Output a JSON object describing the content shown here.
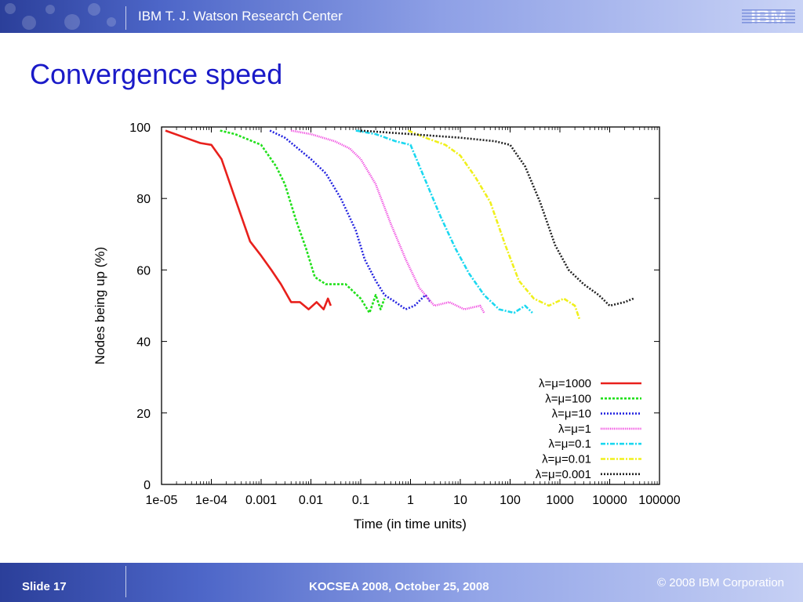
{
  "header": {
    "org": "IBM T. J. Watson Research Center",
    "logo_text": "IBM"
  },
  "slide": {
    "title": "Convergence speed"
  },
  "footer": {
    "slide_label": "Slide 17",
    "conference": "KOCSEA 2008, October 25, 2008",
    "copyright": "© 2008 IBM Corporation"
  },
  "colors": {
    "title": "#1a1ac8",
    "banner": "#4d66c8"
  },
  "chart_data": {
    "type": "line",
    "xlabel": "Time (in time units)",
    "ylabel": "Nodes being up (%)",
    "x_scale": "log",
    "xlim": [
      1e-05,
      100000
    ],
    "ylim": [
      0,
      100
    ],
    "x_ticks": [
      "1e-05",
      "1e-04",
      "0.001",
      "0.01",
      "0.1",
      "1",
      "10",
      "100",
      "1000",
      "10000",
      "100000"
    ],
    "y_ticks": [
      "0",
      "20",
      "40",
      "60",
      "80",
      "100"
    ],
    "grid": false,
    "legend_position": "bottom-right",
    "series": [
      {
        "name": "λ=μ=1000",
        "color": "#e8201c",
        "dash": "solid",
        "x": [
          1.2e-05,
          3e-05,
          6e-05,
          0.0001,
          0.00016,
          0.0003,
          0.0006,
          0.001,
          0.0016,
          0.0025,
          0.004,
          0.006,
          0.009,
          0.013,
          0.018,
          0.022,
          0.025
        ],
        "y": [
          99,
          97,
          95.5,
          95,
          91,
          80,
          68,
          64,
          60,
          56,
          51,
          51,
          49,
          51,
          49,
          52,
          50
        ]
      },
      {
        "name": "λ=μ=100",
        "color": "#22e01c",
        "dash": "3,2",
        "x": [
          0.00015,
          0.0003,
          0.001,
          0.002,
          0.003,
          0.005,
          0.008,
          0.012,
          0.02,
          0.05,
          0.1,
          0.15,
          0.2,
          0.25,
          0.3
        ],
        "y": [
          99,
          98,
          95,
          89,
          84,
          74,
          66,
          58,
          56,
          56,
          52,
          48,
          53,
          49,
          52
        ]
      },
      {
        "name": "λ=μ=10",
        "color": "#2424e0",
        "dash": "2,2",
        "x": [
          0.0015,
          0.003,
          0.01,
          0.02,
          0.04,
          0.08,
          0.12,
          0.2,
          0.3,
          0.5,
          0.8,
          1.2,
          2,
          2.5
        ],
        "y": [
          99,
          97,
          91,
          87,
          80,
          71,
          63,
          57,
          53,
          51,
          49,
          50,
          53,
          51
        ]
      },
      {
        "name": "λ=μ=1",
        "color": "#f04ce0",
        "dash": "1.2,1.2",
        "x": [
          0.004,
          0.01,
          0.03,
          0.06,
          0.1,
          0.2,
          0.4,
          0.8,
          1.5,
          3,
          6,
          12,
          25,
          30
        ],
        "y": [
          99,
          98,
          96,
          94,
          91,
          84,
          73,
          63,
          55,
          50,
          51,
          49,
          50,
          48
        ]
      },
      {
        "name": "λ=μ=0.1",
        "color": "#1cd8f0",
        "dash": "6,2,2,2",
        "x": [
          0.08,
          0.2,
          0.5,
          1,
          2,
          4,
          8,
          15,
          30,
          60,
          120,
          200,
          280
        ],
        "y": [
          99,
          98,
          96,
          95,
          85,
          75,
          66,
          59,
          53,
          49,
          48,
          50,
          48
        ]
      },
      {
        "name": "λ=μ=0.01",
        "color": "#f0f01c",
        "dash": "6,2,2,2",
        "x": [
          0.9,
          2,
          5,
          10,
          20,
          40,
          80,
          150,
          300,
          600,
          1200,
          2000,
          2500
        ],
        "y": [
          99,
          97,
          95,
          92,
          86,
          79,
          67,
          57,
          52,
          50,
          52,
          50,
          46
        ]
      },
      {
        "name": "λ=μ=0.001",
        "color": "#222222",
        "dash": "2,2",
        "x": [
          0.1,
          1,
          10,
          50,
          100,
          200,
          400,
          800,
          1500,
          3000,
          6000,
          10000,
          20000,
          30000
        ],
        "y": [
          99,
          98,
          97,
          96,
          95,
          89,
          79,
          67,
          60,
          56,
          53,
          50,
          51,
          52
        ]
      }
    ]
  }
}
